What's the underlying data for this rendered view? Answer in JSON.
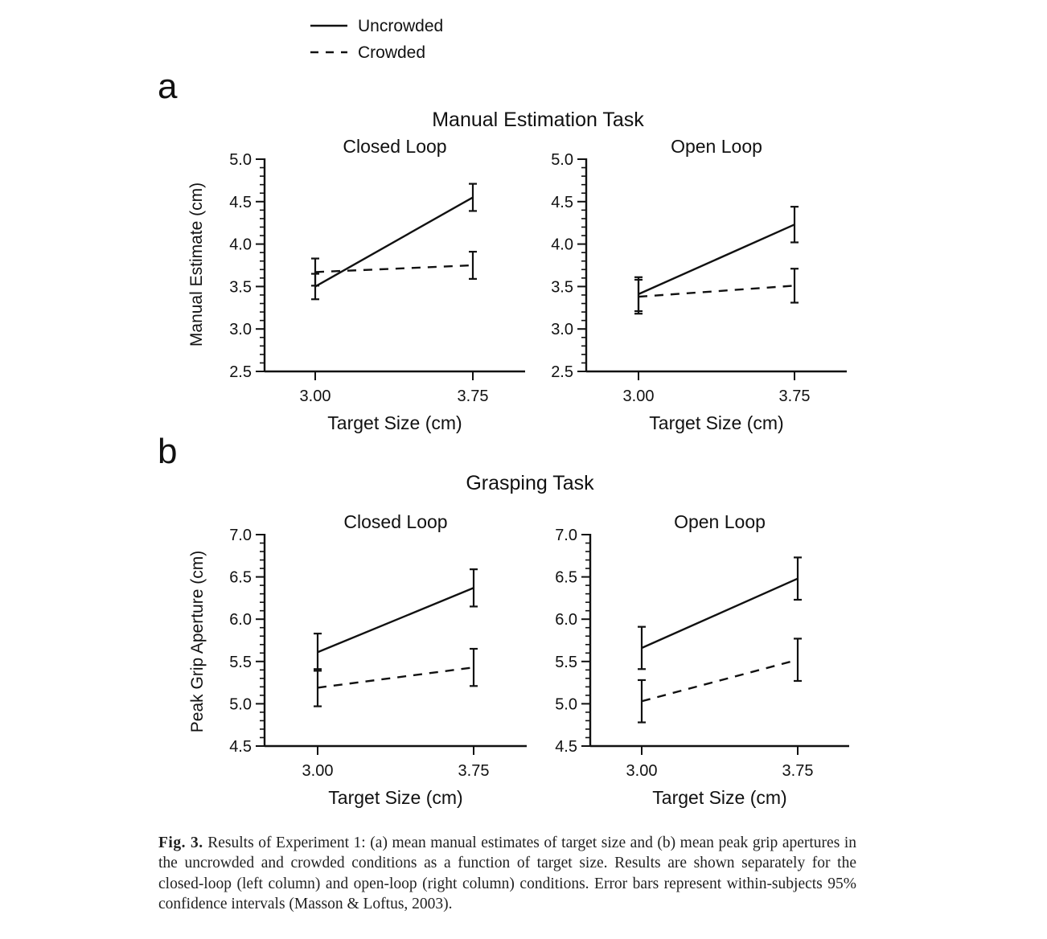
{
  "legend": {
    "position": "top-left",
    "entries": [
      {
        "label": "Uncrowded",
        "style": "solid"
      },
      {
        "label": "Crowded",
        "style": "dashed"
      }
    ]
  },
  "panel_labels": [
    "a",
    "b"
  ],
  "rows": [
    {
      "title": "Manual Estimation Task",
      "ylabel": "Manual Estimate (cm)"
    },
    {
      "title": "Grasping Task",
      "ylabel": "Peak Grip Aperture (cm)"
    }
  ],
  "chart_data": [
    {
      "type": "line",
      "title": "Closed Loop",
      "xlabel": "Target Size (cm)",
      "ylabel": "Manual Estimate (cm)",
      "x": [
        3.0,
        3.75
      ],
      "xticks": [
        "3.00",
        "3.75"
      ],
      "ylim": [
        2.5,
        5.0
      ],
      "yticks": [
        "2.5",
        "3.0",
        "3.5",
        "4.0",
        "4.5",
        "5.0"
      ],
      "series": [
        {
          "name": "Uncrowded",
          "values": [
            3.5,
            4.55
          ],
          "err": [
            0.15,
            0.16
          ]
        },
        {
          "name": "Crowded",
          "values": [
            3.67,
            3.75
          ],
          "err": [
            0.16,
            0.16
          ]
        }
      ]
    },
    {
      "type": "line",
      "title": "Open Loop",
      "xlabel": "Target Size (cm)",
      "ylabel": "",
      "x": [
        3.0,
        3.75
      ],
      "xticks": [
        "3.00",
        "3.75"
      ],
      "ylim": [
        2.5,
        5.0
      ],
      "yticks": [
        "2.5",
        "3.0",
        "3.5",
        "4.0",
        "4.5",
        "5.0"
      ],
      "series": [
        {
          "name": "Uncrowded",
          "values": [
            3.41,
            4.23
          ],
          "err": [
            0.2,
            0.21
          ]
        },
        {
          "name": "Crowded",
          "values": [
            3.38,
            3.51
          ],
          "err": [
            0.2,
            0.2
          ]
        }
      ]
    },
    {
      "type": "line",
      "title": "Closed Loop",
      "xlabel": "Target Size (cm)",
      "ylabel": "Peak Grip Aperture (cm)",
      "x": [
        3.0,
        3.75
      ],
      "xticks": [
        "3.00",
        "3.75"
      ],
      "ylim": [
        4.5,
        7.0
      ],
      "yticks": [
        "4.5",
        "5.0",
        "5.5",
        "6.0",
        "6.5",
        "7.0"
      ],
      "series": [
        {
          "name": "Uncrowded",
          "values": [
            5.61,
            6.37
          ],
          "err": [
            0.22,
            0.22
          ]
        },
        {
          "name": "Crowded",
          "values": [
            5.19,
            5.43
          ],
          "err": [
            0.22,
            0.22
          ]
        }
      ]
    },
    {
      "type": "line",
      "title": "Open Loop",
      "xlabel": "Target Size (cm)",
      "ylabel": "",
      "x": [
        3.0,
        3.75
      ],
      "xticks": [
        "3.00",
        "3.75"
      ],
      "ylim": [
        4.5,
        7.0
      ],
      "yticks": [
        "4.5",
        "5.0",
        "5.5",
        "6.0",
        "6.5",
        "7.0"
      ],
      "series": [
        {
          "name": "Uncrowded",
          "values": [
            5.66,
            6.48
          ],
          "err": [
            0.25,
            0.25
          ]
        },
        {
          "name": "Crowded",
          "values": [
            5.03,
            5.52
          ],
          "err": [
            0.25,
            0.25
          ]
        }
      ]
    }
  ],
  "caption": {
    "label": "Fig. 3.",
    "text": "Results of Experiment 1: (a) mean manual estimates of target size and (b) mean peak grip apertures in the uncrowded and crowded conditions as a function of target size. Results are shown separately for the closed-loop (left column) and open-loop (right column) conditions. Error bars represent within-subjects 95% confidence intervals (Masson & Loftus, 2003)."
  }
}
